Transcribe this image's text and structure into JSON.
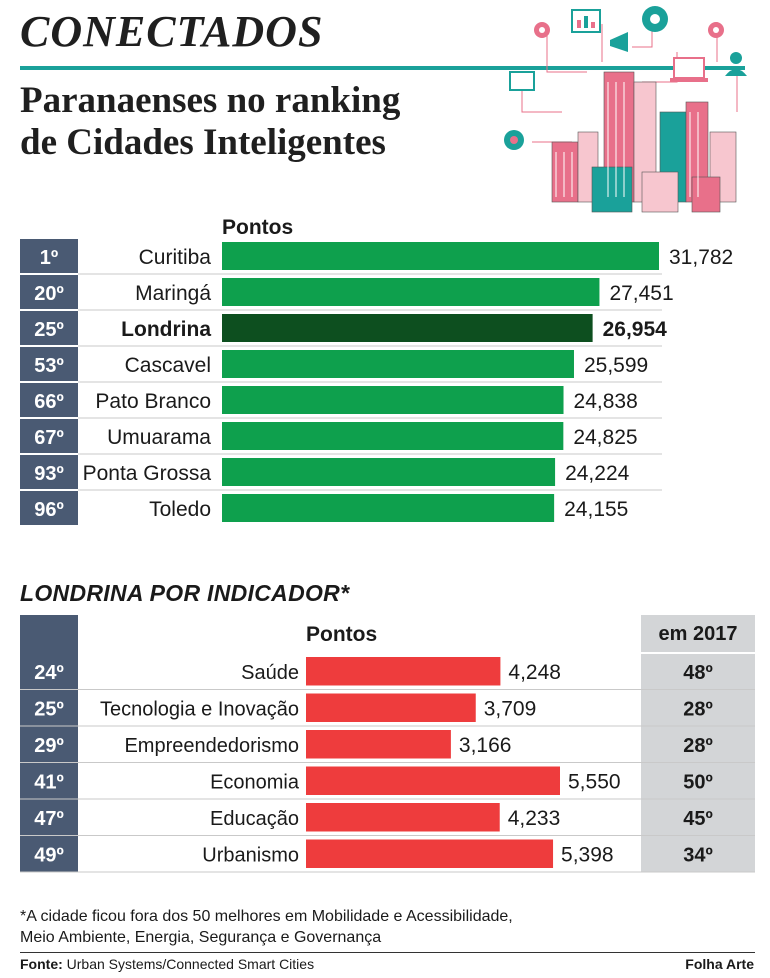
{
  "header": {
    "kicker": "CONECTADOS",
    "headline_line1": "Paranaenses no ranking",
    "headline_line2": "de Cidades Inteligentes"
  },
  "colors": {
    "green": "#0ea04d",
    "green_highlight": "#0d4f1f",
    "red": "#ee3c3d",
    "rank_bg": "#4a5a73",
    "teal": "#1aa19a",
    "grey_col": "#d3d5d7"
  },
  "chart_data": [
    {
      "type": "bar",
      "orientation": "horizontal",
      "column_header": "Pontos",
      "categories": [
        "Curitiba",
        "Maringá",
        "Londrina",
        "Cascavel",
        "Pato Branco",
        "Umuarama",
        "Ponta Grossa",
        "Toledo"
      ],
      "ranks": [
        "1º",
        "20º",
        "25º",
        "53º",
        "66º",
        "67º",
        "93º",
        "96º"
      ],
      "values": [
        31.782,
        27.451,
        26.954,
        25.599,
        24.838,
        24.825,
        24.224,
        24.155
      ],
      "value_labels": [
        "31,782",
        "27,451",
        "26,954",
        "25,599",
        "24,838",
        "24,825",
        "24,224",
        "24,155"
      ],
      "highlight": "Londrina",
      "xlim": [
        0,
        31.782
      ]
    },
    {
      "type": "bar",
      "orientation": "horizontal",
      "title": "LONDRINA POR INDICADOR*",
      "column_header": "Pontos",
      "extra_column_header": "em 2017",
      "categories": [
        "Saúde",
        "Tecnologia e Inovação",
        "Empreendedorismo",
        "Economia",
        "Educação",
        "Urbanismo"
      ],
      "ranks": [
        "24º",
        "25º",
        "29º",
        "41º",
        "47º",
        "49º"
      ],
      "values": [
        4.248,
        3.709,
        3.166,
        5.55,
        4.233,
        5.398
      ],
      "value_labels": [
        "4,248",
        "3,709",
        "3,166",
        "5,550",
        "4,233",
        "5,398"
      ],
      "ranks_2017": [
        "48º",
        "28º",
        "28º",
        "50º",
        "45º",
        "34º"
      ],
      "xlim": [
        0,
        5.55
      ]
    }
  ],
  "footnote": {
    "line1": "*A cidade ficou fora dos 50 melhores em Mobilidade e Acessibilidade,",
    "line2": "Meio Ambiente, Energia, Segurança e Governança"
  },
  "source": {
    "label": "Fonte:",
    "text": " Urban Systems/Connected Smart Cities",
    "credit": "Folha Arte"
  },
  "icons": [
    "gear-icon",
    "chart-icon",
    "megaphone-icon",
    "user-icon",
    "laptop-icon",
    "city-skyline-icon"
  ]
}
